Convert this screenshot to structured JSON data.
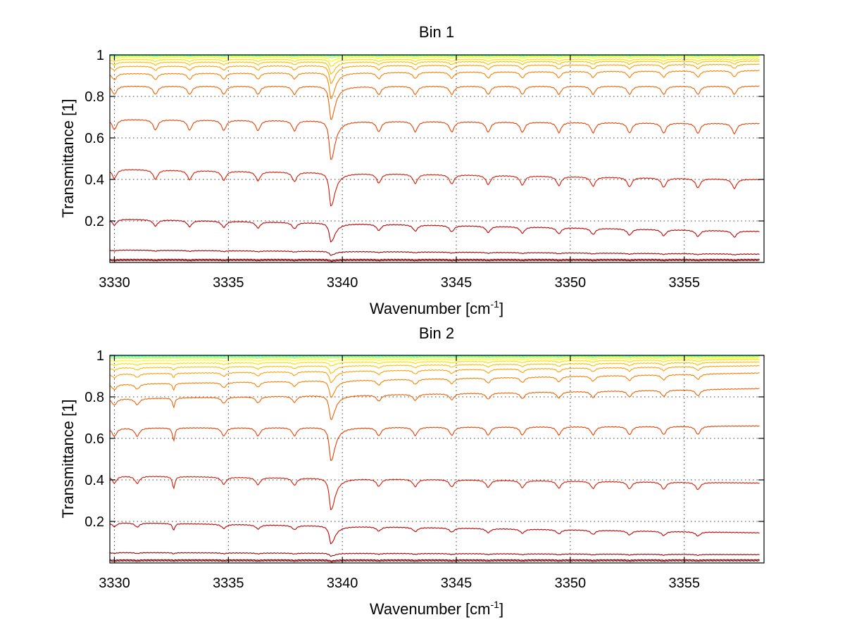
{
  "chart_data": [
    {
      "type": "line",
      "title": "Bin 1",
      "xlabel": "Wavenumber [cm",
      "xlabel_sup": "-1",
      "xlabel_end": "]",
      "ylabel": "Transmittance [1]",
      "xlim": [
        3329.8,
        3358.5
      ],
      "ylim": [
        0,
        1.0
      ],
      "xticks": [
        3330,
        3335,
        3340,
        3345,
        3350,
        3355
      ],
      "xtick_labels": [
        "3330",
        "3335",
        "3340",
        "3345",
        "3350",
        "3355"
      ],
      "yticks": [
        0.2,
        0.4,
        0.6,
        0.8,
        1.0
      ],
      "ytick_labels": [
        "0.2",
        "0.4",
        "0.6",
        "0.8",
        "1"
      ],
      "grid": true,
      "colormap": "jet (dark red for lowest transmittance to cyan for highest)",
      "x_range": [
        3329.8,
        3358.3
      ],
      "strong_line_center": 3339.5,
      "weak_line_centers": [
        3330.0,
        3331.8,
        3333.3,
        3334.8,
        3336.3,
        3337.9,
        3341.6,
        3343.2,
        3344.8,
        3346.4,
        3347.9,
        3349.5,
        3351.0,
        3352.6,
        3354.1,
        3355.6,
        3357.2
      ],
      "series": [
        {
          "start": 0.01,
          "end": 0.01,
          "strong_min": 0.005,
          "weak_dip": 0.002,
          "color": "#7f0000"
        },
        {
          "start": 0.015,
          "end": 0.015,
          "strong_min": 0.01,
          "weak_dip": 0.002,
          "color": "#8b0000"
        },
        {
          "start": 0.06,
          "end": 0.04,
          "strong_min": 0.04,
          "weak_dip": 0.004,
          "color": "#a00000"
        },
        {
          "start": 0.21,
          "end": 0.15,
          "strong_min": 0.11,
          "weak_dip": 0.03,
          "color": "#c00000"
        },
        {
          "start": 0.45,
          "end": 0.4,
          "strong_min": 0.27,
          "weak_dip": 0.045,
          "color": "#d81800"
        },
        {
          "start": 0.69,
          "end": 0.67,
          "strong_min": 0.48,
          "weak_dip": 0.05,
          "color": "#e84000"
        },
        {
          "start": 0.85,
          "end": 0.85,
          "strong_min": 0.67,
          "weak_dip": 0.04,
          "color": "#f06000"
        },
        {
          "start": 0.91,
          "end": 0.925,
          "strong_min": 0.77,
          "weak_dip": 0.03,
          "color": "#f88000"
        },
        {
          "start": 0.945,
          "end": 0.955,
          "strong_min": 0.85,
          "weak_dip": 0.02,
          "color": "#ffa000"
        },
        {
          "start": 0.965,
          "end": 0.97,
          "strong_min": 0.9,
          "weak_dip": 0.014,
          "color": "#ffbf00"
        },
        {
          "start": 0.978,
          "end": 0.98,
          "strong_min": 0.94,
          "weak_dip": 0.01,
          "color": "#ffdf00"
        },
        {
          "start": 0.988,
          "end": 0.99,
          "strong_min": 0.965,
          "weak_dip": 0.006,
          "color": "#ffff00"
        },
        {
          "start": 0.994,
          "end": 0.995,
          "strong_min": 0.985,
          "weak_dip": 0.003,
          "color": "#bfff40"
        },
        {
          "start": 0.997,
          "end": 0.998,
          "strong_min": 0.993,
          "weak_dip": 0.002,
          "color": "#80ff80"
        },
        {
          "start": 0.999,
          "end": 0.999,
          "strong_min": 0.998,
          "weak_dip": 0.001,
          "color": "#40ffbf"
        },
        {
          "start": 1.0,
          "end": 1.0,
          "strong_min": 0.999,
          "weak_dip": 0.0005,
          "color": "#00e0ff"
        }
      ]
    },
    {
      "type": "line",
      "title": "Bin 2",
      "xlabel": "Wavenumber [cm",
      "xlabel_sup": "-1",
      "xlabel_end": "]",
      "ylabel": "Transmittance [1]",
      "xlim": [
        3329.8,
        3358.5
      ],
      "ylim": [
        0,
        1.0
      ],
      "xticks": [
        3330,
        3335,
        3340,
        3345,
        3350,
        3355
      ],
      "xtick_labels": [
        "3330",
        "3335",
        "3340",
        "3345",
        "3350",
        "3355"
      ],
      "yticks": [
        0.2,
        0.4,
        0.6,
        0.8,
        1.0
      ],
      "ytick_labels": [
        "0.2",
        "0.4",
        "0.6",
        "0.8",
        "1"
      ],
      "grid": true,
      "colormap": "jet (dark red for lowest transmittance to cyan for highest)",
      "x_range": [
        3329.8,
        3358.3
      ],
      "strong_line_center": 3339.5,
      "extra_line_center": 3332.6,
      "weak_line_centers": [
        3330.0,
        3331.0,
        3334.8,
        3336.3,
        3337.9,
        3341.6,
        3343.2,
        3344.8,
        3346.4,
        3347.9,
        3349.5,
        3351.0,
        3352.6,
        3354.1,
        3355.6
      ],
      "series": [
        {
          "start": 0.01,
          "end": 0.01,
          "strong_min": 0.005,
          "weak_dip": 0.002,
          "color": "#7f0000"
        },
        {
          "start": 0.015,
          "end": 0.015,
          "strong_min": 0.01,
          "weak_dip": 0.002,
          "color": "#8b0000"
        },
        {
          "start": 0.05,
          "end": 0.04,
          "strong_min": 0.035,
          "weak_dip": 0.004,
          "color": "#a00000"
        },
        {
          "start": 0.195,
          "end": 0.145,
          "strong_min": 0.1,
          "weak_dip": 0.02,
          "color": "#c00000"
        },
        {
          "start": 0.42,
          "end": 0.385,
          "strong_min": 0.25,
          "weak_dip": 0.035,
          "color": "#d81800"
        },
        {
          "start": 0.65,
          "end": 0.66,
          "strong_min": 0.47,
          "weak_dip": 0.04,
          "color": "#e84000"
        },
        {
          "start": 0.79,
          "end": 0.84,
          "strong_min": 0.66,
          "weak_dip": 0.03,
          "color": "#f06000"
        },
        {
          "start": 0.86,
          "end": 0.915,
          "strong_min": 0.77,
          "weak_dip": 0.025,
          "color": "#f88000"
        },
        {
          "start": 0.91,
          "end": 0.95,
          "strong_min": 0.85,
          "weak_dip": 0.018,
          "color": "#ffa000"
        },
        {
          "start": 0.94,
          "end": 0.968,
          "strong_min": 0.9,
          "weak_dip": 0.012,
          "color": "#ffbf00"
        },
        {
          "start": 0.96,
          "end": 0.98,
          "strong_min": 0.94,
          "weak_dip": 0.008,
          "color": "#ffdf00"
        },
        {
          "start": 0.975,
          "end": 0.988,
          "strong_min": 0.965,
          "weak_dip": 0.005,
          "color": "#ffff00"
        },
        {
          "start": 0.987,
          "end": 0.994,
          "strong_min": 0.985,
          "weak_dip": 0.003,
          "color": "#bfff40"
        },
        {
          "start": 0.993,
          "end": 0.997,
          "strong_min": 0.993,
          "weak_dip": 0.002,
          "color": "#80ff80"
        },
        {
          "start": 0.997,
          "end": 0.999,
          "strong_min": 0.998,
          "weak_dip": 0.001,
          "color": "#40ffbf"
        },
        {
          "start": 1.0,
          "end": 1.0,
          "strong_min": 0.999,
          "weak_dip": 0.0005,
          "color": "#00e0ff"
        }
      ]
    }
  ]
}
